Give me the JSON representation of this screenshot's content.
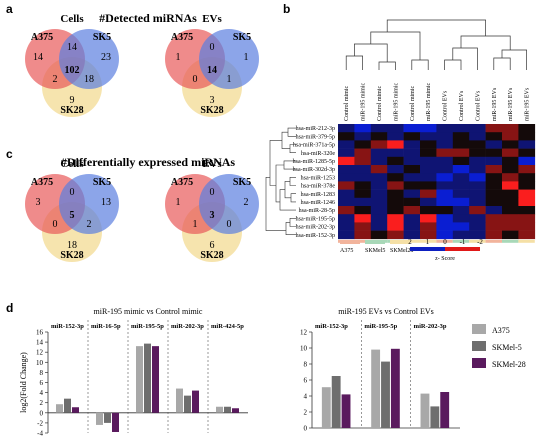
{
  "panels": {
    "a": "a",
    "b": "b",
    "c": "c",
    "d": "d"
  },
  "venn_a": {
    "title": "#Detected miRNAs",
    "cells": {
      "title": "Cells",
      "labels": [
        "A375",
        "SK5",
        "SK28"
      ],
      "only1": "14",
      "only2": "23",
      "only3": "9",
      "ab": "14",
      "ac": "2",
      "bc": "18",
      "abc": "102"
    },
    "evs": {
      "title": "EVs",
      "labels": [
        "A375",
        "SK5",
        "SK28"
      ],
      "only1": "1",
      "only2": "1",
      "only3": "3",
      "ab": "0",
      "ac": "0",
      "bc": "1",
      "abc": "14"
    }
  },
  "venn_c": {
    "title": "#Differentially expressed miRNAs",
    "cells": {
      "title": "Cells",
      "labels": [
        "A375",
        "SK5",
        "SK28"
      ],
      "only1": "3",
      "only2": "13",
      "only3": "18",
      "ab": "0",
      "ac": "0",
      "bc": "2",
      "abc": "5"
    },
    "evs": {
      "title": "EVs",
      "labels": [
        "A375",
        "SK5",
        "SK28"
      ],
      "only1": "1",
      "only2": "2",
      "only3": "6",
      "ab": "0",
      "ac": "1",
      "bc": "0",
      "abc": "3"
    }
  },
  "colors": {
    "red": "#e85a5a",
    "blue": "#5b7fe0",
    "yellow": "#f5dfa0",
    "a375": "#f2b49c",
    "skm5": "#a8d8b8",
    "skm28": "#f5e0a6",
    "bar1": "#a8a8a8",
    "bar2": "#6e6e6e",
    "bar3": "#5a1a5e"
  },
  "heatmap": {
    "columns": [
      "Control mimic",
      "miR-195 mimic",
      "Control mimic",
      "miR-195 mimic",
      "Control mimic",
      "miR-195 mimic",
      "Control EVs",
      "Control EVs",
      "Control EVs",
      "miR-195 EVs",
      "miR-195 EVs",
      "miR-195 EVs"
    ],
    "rows": [
      "hsa-miR-212-3p",
      "hsa-miR-379-5p",
      "hsa-miR-371a-5p",
      "hsa-miR-320e",
      "hsa-miR-1285-5p",
      "hsa-miR-302d-3p",
      "hsa-miR-1253",
      "hsa-miR-378e",
      "hsa-miR-1283",
      "hsa-miR-1246",
      "hsa-miR-28-5p",
      "hsa-miR-195-5p",
      "hsa-miR-202-3p",
      "hsa-miR-152-3p"
    ],
    "values": [
      [
        -1,
        -2,
        -1,
        -1,
        -2,
        -2,
        -1,
        -1,
        -1,
        1,
        1,
        0
      ],
      [
        0,
        -1,
        0,
        -1,
        0,
        -1,
        -1,
        0,
        -1,
        0,
        1,
        0
      ],
      [
        -1,
        0,
        1,
        2,
        -1,
        0,
        -1,
        0,
        0,
        -1,
        0,
        -1
      ],
      [
        -1,
        1,
        -1,
        -1,
        -1,
        0,
        1,
        1,
        0,
        0,
        1,
        0
      ],
      [
        2,
        1,
        -1,
        0,
        -1,
        -1,
        -1,
        0,
        -1,
        -1,
        0,
        -2
      ],
      [
        -1,
        -1,
        1,
        -1,
        0,
        -1,
        -1,
        -2,
        -1,
        1,
        0,
        1
      ],
      [
        -1,
        -1,
        -1,
        0,
        -1,
        -1,
        -2,
        -1,
        -2,
        0,
        1,
        0
      ],
      [
        1,
        0,
        -1,
        1,
        0,
        0,
        -1,
        -1,
        -1,
        0,
        2,
        0
      ],
      [
        -1,
        0,
        -1,
        0,
        -1,
        1,
        -2,
        -1,
        -1,
        0,
        0,
        2
      ],
      [
        -1,
        -1,
        -1,
        0,
        0,
        -1,
        -2,
        -2,
        -1,
        0,
        0,
        2
      ],
      [
        1,
        0,
        -1,
        0,
        1,
        0,
        0,
        -1,
        1,
        -1,
        0,
        0
      ],
      [
        -1,
        2,
        -1,
        2,
        -1,
        2,
        -2,
        -1,
        -1,
        1,
        1,
        1
      ],
      [
        -1,
        1,
        -1,
        2,
        -1,
        1,
        -2,
        -2,
        -1,
        1,
        1,
        1
      ],
      [
        -1,
        1,
        0,
        1,
        -1,
        1,
        -2,
        -1,
        -1,
        1,
        0,
        1
      ]
    ],
    "legend_groups": [
      "A375",
      "SKMel5",
      "SKMel28"
    ],
    "scale_ticks": [
      "2",
      "1",
      "0",
      "-1",
      "-2"
    ],
    "scale_label": "z- Score"
  },
  "chart_data": [
    {
      "type": "bar",
      "title": "miR-195 mimic vs Control mimic",
      "ylabel": "log2(Fold Change)",
      "ylim": [
        -4,
        16
      ],
      "yticks": [
        "16",
        "14",
        "12",
        "10",
        "8",
        "6",
        "4",
        "2",
        "0",
        "-2",
        "-4"
      ],
      "categories": [
        "miR-152-3p",
        "miR-16-5p",
        "miR-195-5p",
        "miR-202-3p",
        "miR-424-5p"
      ],
      "series": [
        {
          "name": "A375",
          "values": [
            1.7,
            -2.4,
            13.2,
            4.8,
            1.2
          ]
        },
        {
          "name": "SKMel-5",
          "values": [
            2.8,
            -2.0,
            13.7,
            3.4,
            1.2
          ]
        },
        {
          "name": "SKMel-28",
          "values": [
            1.1,
            -3.8,
            13.2,
            4.4,
            0.9
          ]
        }
      ]
    },
    {
      "type": "bar",
      "title": "miR-195 EVs vs Control EVs",
      "ylim": [
        0,
        12
      ],
      "yticks": [
        "12",
        "10",
        "8",
        "6",
        "4",
        "2",
        "0"
      ],
      "categories": [
        "miR-152-3p",
        "miR-195-5p",
        "miR-202-3p"
      ],
      "series": [
        {
          "name": "A375",
          "values": [
            5.1,
            9.8,
            4.3
          ]
        },
        {
          "name": "SKMel-5",
          "values": [
            6.5,
            8.3,
            2.7
          ]
        },
        {
          "name": "SKMel-28",
          "values": [
            4.2,
            9.9,
            4.5
          ]
        }
      ],
      "legend": [
        "A375",
        "SKMel-5",
        "SKMel-28"
      ]
    }
  ]
}
